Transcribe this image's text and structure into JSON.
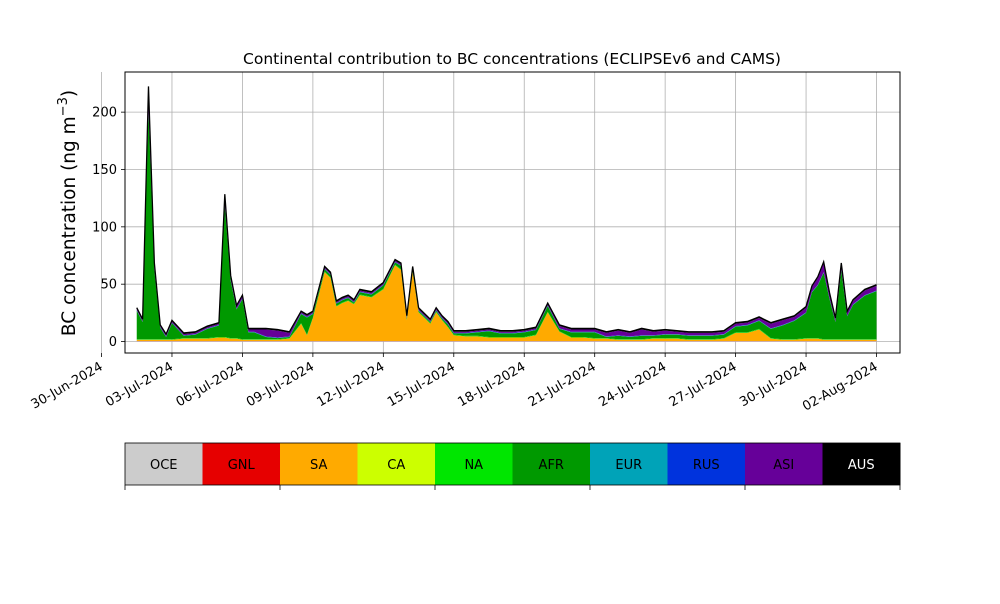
{
  "chart_data": {
    "type": "area",
    "stacked": true,
    "title": "Continental contribution to BC concentrations (ECLIPSEv6 and CAMS)",
    "ylabel_main": "BC concentration (ng m",
    "ylabel_sup": "−3",
    "ylabel_close": ")",
    "xlabel": "",
    "grid": true,
    "xlim": [
      "2024-07-01",
      "2024-08-03"
    ],
    "ylim": [
      -10,
      235
    ],
    "y_ticks": [
      0,
      50,
      100,
      150,
      200
    ],
    "x_ticks": [
      {
        "date": "2024-06-30",
        "label": "30-Jun-2024"
      },
      {
        "date": "2024-07-03",
        "label": "03-Jul-2024"
      },
      {
        "date": "2024-07-06",
        "label": "06-Jul-2024"
      },
      {
        "date": "2024-07-09",
        "label": "09-Jul-2024"
      },
      {
        "date": "2024-07-12",
        "label": "12-Jul-2024"
      },
      {
        "date": "2024-07-15",
        "label": "15-Jul-2024"
      },
      {
        "date": "2024-07-18",
        "label": "18-Jul-2024"
      },
      {
        "date": "2024-07-21",
        "label": "21-Jul-2024"
      },
      {
        "date": "2024-07-24",
        "label": "24-Jul-2024"
      },
      {
        "date": "2024-07-27",
        "label": "27-Jul-2024"
      },
      {
        "date": "2024-07-30",
        "label": "30-Jul-2024"
      },
      {
        "date": "2024-08-02",
        "label": "02-Aug-2024"
      }
    ],
    "legend": {
      "placement": "bottom",
      "entries": [
        {
          "name": "OCE",
          "color": "#cccccc",
          "text_color": "#000000"
        },
        {
          "name": "GNL",
          "color": "#e60000",
          "text_color": "#000000"
        },
        {
          "name": "SA",
          "color": "#ffaa00",
          "text_color": "#000000"
        },
        {
          "name": "CA",
          "color": "#ccff00",
          "text_color": "#000000"
        },
        {
          "name": "NA",
          "color": "#00e600",
          "text_color": "#000000"
        },
        {
          "name": "AFR",
          "color": "#009900",
          "text_color": "#000000"
        },
        {
          "name": "EUR",
          "color": "#00a3b8",
          "text_color": "#000000"
        },
        {
          "name": "RUS",
          "color": "#0033dd",
          "text_color": "#000000"
        },
        {
          "name": "ASI",
          "color": "#660099",
          "text_color": "#000000"
        },
        {
          "name": "AUS",
          "color": "#000000",
          "text_color": "#ffffff"
        }
      ]
    },
    "x": [
      "2024-07-01 12:00",
      "2024-07-01 18:00",
      "2024-07-02 00:00",
      "2024-07-02 06:00",
      "2024-07-02 12:00",
      "2024-07-02 18:00",
      "2024-07-03 00:00",
      "2024-07-03 12:00",
      "2024-07-04 00:00",
      "2024-07-04 12:00",
      "2024-07-05 00:00",
      "2024-07-05 06:00",
      "2024-07-05 12:00",
      "2024-07-05 18:00",
      "2024-07-06 00:00",
      "2024-07-06 06:00",
      "2024-07-06 12:00",
      "2024-07-07 00:00",
      "2024-07-07 12:00",
      "2024-07-08 00:00",
      "2024-07-08 12:00",
      "2024-07-08 18:00",
      "2024-07-09 00:00",
      "2024-07-09 12:00",
      "2024-07-09 18:00",
      "2024-07-10 00:00",
      "2024-07-10 06:00",
      "2024-07-10 12:00",
      "2024-07-10 18:00",
      "2024-07-11 00:00",
      "2024-07-11 12:00",
      "2024-07-12 00:00",
      "2024-07-12 12:00",
      "2024-07-12 18:00",
      "2024-07-13 00:00",
      "2024-07-13 06:00",
      "2024-07-13 12:00",
      "2024-07-13 18:00",
      "2024-07-14 00:00",
      "2024-07-14 06:00",
      "2024-07-14 12:00",
      "2024-07-14 18:00",
      "2024-07-15 00:00",
      "2024-07-15 12:00",
      "2024-07-16 00:00",
      "2024-07-16 12:00",
      "2024-07-17 00:00",
      "2024-07-17 12:00",
      "2024-07-18 00:00",
      "2024-07-18 12:00",
      "2024-07-19 00:00",
      "2024-07-19 12:00",
      "2024-07-20 00:00",
      "2024-07-20 12:00",
      "2024-07-21 00:00",
      "2024-07-21 12:00",
      "2024-07-22 00:00",
      "2024-07-22 12:00",
      "2024-07-23 00:00",
      "2024-07-23 12:00",
      "2024-07-24 00:00",
      "2024-07-24 12:00",
      "2024-07-25 00:00",
      "2024-07-25 12:00",
      "2024-07-26 00:00",
      "2024-07-26 12:00",
      "2024-07-27 00:00",
      "2024-07-27 12:00",
      "2024-07-28 00:00",
      "2024-07-28 12:00",
      "2024-07-29 00:00",
      "2024-07-29 12:00",
      "2024-07-30 00:00",
      "2024-07-30 06:00",
      "2024-07-30 12:00",
      "2024-07-30 18:00",
      "2024-07-31 00:00",
      "2024-07-31 06:00",
      "2024-07-31 12:00",
      "2024-07-31 18:00",
      "2024-08-01 00:00",
      "2024-08-01 12:00",
      "2024-08-02 00:00"
    ],
    "series": [
      {
        "name": "OCE",
        "values": [
          0.3,
          0.3,
          0.3,
          0.3,
          0.3,
          0.3,
          0.3,
          0.3,
          0.3,
          0.3,
          0.3,
          0.3,
          0.3,
          0.3,
          0.3,
          0.3,
          0.3,
          0.3,
          0.3,
          0.3,
          0.3,
          0.3,
          0.3,
          0.3,
          0.3,
          0.3,
          0.3,
          0.3,
          0.3,
          0.3,
          0.3,
          0.3,
          0.3,
          0.3,
          0.3,
          0.3,
          0.3,
          0.3,
          0.3,
          0.3,
          0.3,
          0.3,
          0.3,
          0.3,
          0.3,
          0.3,
          0.3,
          0.3,
          0.3,
          0.3,
          0.3,
          0.3,
          0.3,
          0.3,
          0.3,
          0.3,
          0.3,
          0.3,
          0.3,
          0.3,
          0.3,
          0.3,
          0.3,
          0.3,
          0.3,
          0.3,
          0.3,
          0.3,
          0.3,
          0.3,
          0.3,
          0.3,
          0.3,
          0.3,
          0.3,
          0.3,
          0.3,
          0.3,
          0.3,
          0.3,
          0.3,
          0.3,
          0.3
        ]
      },
      {
        "name": "GNL",
        "values": [
          0.2,
          0.2,
          0.2,
          0.2,
          0.2,
          0.2,
          0.2,
          0.2,
          0.2,
          0.2,
          0.2,
          0.2,
          0.2,
          0.2,
          0.2,
          0.2,
          0.2,
          0.2,
          0.2,
          0.2,
          0.2,
          0.2,
          0.2,
          0.2,
          0.2,
          0.2,
          0.2,
          0.2,
          0.2,
          0.2,
          0.2,
          0.2,
          0.2,
          0.2,
          0.2,
          0.2,
          0.2,
          0.2,
          0.2,
          0.2,
          0.2,
          0.2,
          0.2,
          0.2,
          0.2,
          0.2,
          0.2,
          0.2,
          0.2,
          0.2,
          0.2,
          0.2,
          0.2,
          0.2,
          0.2,
          0.2,
          0.2,
          0.2,
          0.2,
          0.2,
          0.2,
          0.2,
          0.2,
          0.2,
          0.2,
          0.2,
          0.2,
          0.2,
          0.2,
          0.2,
          0.2,
          0.2,
          0.2,
          0.2,
          0.2,
          0.2,
          0.2,
          0.2,
          0.2,
          0.2,
          0.2,
          0.2,
          0.2
        ]
      },
      {
        "name": "SA",
        "values": [
          1,
          1,
          1,
          1,
          1,
          1,
          1,
          2,
          2,
          2,
          3,
          3,
          2,
          2,
          1,
          1,
          1,
          1,
          1,
          2,
          15,
          5,
          20,
          60,
          55,
          30,
          33,
          35,
          32,
          40,
          38,
          45,
          66,
          62,
          18,
          60,
          25,
          20,
          15,
          25,
          18,
          12,
          5,
          4,
          4,
          3,
          3,
          3,
          3,
          5,
          25,
          8,
          3,
          3,
          2,
          2,
          1,
          1,
          1,
          2,
          2,
          2,
          1,
          1,
          1,
          2,
          7,
          7,
          10,
          2,
          1,
          1,
          2,
          2,
          2,
          1,
          1,
          1,
          1,
          1,
          1,
          1,
          1
        ]
      },
      {
        "name": "CA",
        "values": [
          0,
          0,
          0,
          0,
          0,
          0,
          0,
          0,
          0,
          0,
          0,
          0,
          0,
          0,
          0,
          0,
          0,
          0,
          0,
          0,
          0,
          0,
          0,
          0,
          0,
          0,
          0,
          0,
          0,
          0,
          0,
          0,
          0,
          0,
          0,
          0,
          0,
          0,
          0,
          0,
          0,
          0,
          0,
          0,
          0,
          0,
          0,
          0,
          0,
          0,
          0,
          0,
          0,
          0,
          0,
          0,
          0,
          0,
          0,
          0,
          0,
          0,
          0,
          0,
          0,
          0,
          0,
          0,
          0,
          0,
          0,
          0,
          0,
          0,
          0,
          0,
          0,
          0,
          0,
          0,
          0,
          0,
          0
        ]
      },
      {
        "name": "NA",
        "values": [
          0.5,
          0.5,
          0.5,
          0.5,
          0.5,
          0.5,
          0.5,
          0.5,
          0.5,
          0.5,
          0.5,
          0.5,
          0.5,
          0.5,
          0.5,
          0.5,
          0.5,
          0.5,
          0.5,
          0.5,
          0.5,
          0.5,
          0.5,
          0.5,
          0.5,
          0.5,
          0.5,
          0.5,
          0.5,
          0.5,
          0.5,
          0.5,
          0.5,
          0.5,
          0.5,
          0.5,
          0.5,
          0.5,
          0.5,
          0.5,
          0.5,
          0.5,
          0.5,
          0.5,
          0.5,
          0.5,
          0.5,
          0.5,
          0.5,
          0.5,
          0.5,
          0.5,
          0.5,
          0.5,
          0.5,
          0.5,
          0.5,
          0.5,
          0.5,
          0.5,
          0.5,
          0.5,
          0.5,
          0.5,
          0.5,
          0.5,
          0.5,
          0.5,
          0.5,
          0.5,
          0.5,
          0.5,
          0.5,
          0.5,
          0.5,
          0.5,
          0.5,
          0.5,
          0.5,
          0.5,
          0.5,
          0.5,
          0.5
        ]
      },
      {
        "name": "AFR",
        "values": [
          25,
          15,
          200,
          60,
          10,
          2,
          14,
          2,
          3,
          8,
          10,
          115,
          50,
          25,
          35,
          6,
          6,
          2,
          1,
          1,
          8,
          15,
          3,
          2,
          2,
          2,
          2,
          2,
          1,
          2,
          2,
          3,
          2,
          3,
          1,
          2,
          1,
          1,
          1,
          1,
          1,
          2,
          1,
          2,
          3,
          5,
          3,
          3,
          4,
          4,
          5,
          2,
          4,
          4,
          5,
          1,
          3,
          2,
          3,
          2,
          3,
          3,
          3,
          3,
          3,
          3,
          5,
          6,
          7,
          8,
          12,
          16,
          22,
          40,
          46,
          58,
          35,
          15,
          60,
          20,
          30,
          38,
          42
        ]
      },
      {
        "name": "EUR",
        "values": [
          0.2,
          0.2,
          0.2,
          0.2,
          0.2,
          0.2,
          0.2,
          0.2,
          0.2,
          0.2,
          0.2,
          0.2,
          0.2,
          0.2,
          0.2,
          0.2,
          0.2,
          0.2,
          0.2,
          0.2,
          0.2,
          0.2,
          0.2,
          0.2,
          0.2,
          0.2,
          0.2,
          0.2,
          0.2,
          0.2,
          0.2,
          0.2,
          0.2,
          0.2,
          0.2,
          0.2,
          0.2,
          0.2,
          0.2,
          0.2,
          0.2,
          0.2,
          0.2,
          0.2,
          0.2,
          0.2,
          0.2,
          0.2,
          0.2,
          0.2,
          0.2,
          0.2,
          0.2,
          0.2,
          0.2,
          0.2,
          0.2,
          0.2,
          0.2,
          0.2,
          0.2,
          0.2,
          0.2,
          0.2,
          0.2,
          0.2,
          0.2,
          0.2,
          0.2,
          0.2,
          0.2,
          0.2,
          0.2,
          0.2,
          0.2,
          0.2,
          0.2,
          0.2,
          0.2,
          0.2,
          0.2,
          0.2,
          0.2
        ]
      },
      {
        "name": "RUS",
        "values": [
          0.3,
          0.3,
          0.3,
          0.3,
          0.3,
          0.3,
          0.3,
          0.3,
          0.3,
          0.3,
          0.3,
          0.3,
          0.3,
          0.3,
          0.3,
          0.3,
          0.3,
          0.3,
          0.3,
          0.3,
          0.3,
          0.3,
          0.3,
          0.3,
          0.3,
          0.3,
          0.3,
          0.3,
          0.3,
          0.3,
          0.3,
          0.3,
          0.3,
          0.3,
          0.3,
          0.3,
          0.3,
          0.3,
          0.3,
          0.3,
          0.3,
          0.3,
          0.3,
          0.3,
          0.3,
          0.3,
          0.3,
          0.3,
          0.3,
          0.3,
          0.3,
          0.3,
          0.3,
          0.3,
          0.3,
          0.3,
          0.3,
          0.3,
          0.3,
          0.3,
          0.3,
          0.3,
          0.3,
          0.3,
          0.3,
          0.3,
          0.3,
          0.3,
          0.3,
          0.3,
          0.3,
          0.3,
          0.3,
          0.3,
          0.3,
          0.3,
          0.3,
          0.3,
          0.3,
          0.3,
          0.3,
          0.3,
          0.3
        ]
      },
      {
        "name": "ASI",
        "values": [
          1,
          1,
          16,
          5,
          1,
          1,
          1,
          1,
          1,
          1,
          1,
          8,
          3,
          2,
          2,
          2,
          2,
          6,
          6,
          3,
          1,
          1,
          1,
          1,
          1,
          1,
          1,
          1,
          1,
          1,
          1,
          1,
          1,
          1,
          1,
          1,
          1,
          1,
          1,
          1,
          1,
          1,
          1,
          1,
          1,
          1,
          1,
          1,
          1,
          1,
          1,
          2,
          2,
          2,
          2,
          3,
          4,
          3,
          5,
          3,
          3,
          2,
          2,
          2,
          2,
          2,
          2,
          2,
          2,
          4,
          4,
          3,
          4,
          4,
          6,
          8,
          4,
          2,
          5,
          3,
          3,
          4,
          4
        ]
      },
      {
        "name": "AUS",
        "values": [
          1,
          1,
          4,
          1,
          1,
          1,
          1,
          1,
          1,
          1,
          1,
          1,
          1,
          1,
          1,
          1,
          1,
          1,
          1,
          1,
          1,
          1,
          1,
          1,
          1,
          1,
          1,
          1,
          1,
          1,
          1,
          1,
          1,
          1,
          1,
          1,
          1,
          1,
          1,
          1,
          1,
          1,
          1,
          1,
          1,
          1,
          1,
          1,
          1,
          1,
          1,
          1,
          1,
          1,
          1,
          1,
          1,
          1,
          1,
          1,
          1,
          1,
          1,
          1,
          1,
          1,
          1,
          1,
          1,
          1,
          1,
          1,
          1,
          1,
          1,
          1,
          1,
          1,
          1,
          1,
          1,
          1,
          1
        ]
      }
    ]
  }
}
